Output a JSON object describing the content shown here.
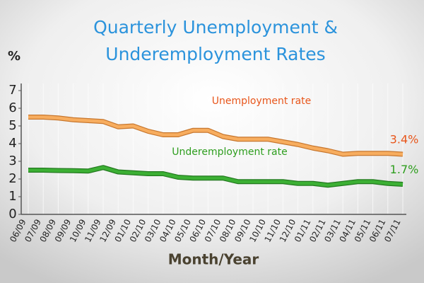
{
  "chart_data": {
    "type": "line",
    "title": [
      "Quarterly Unemployment &",
      "Underemployment Rates"
    ],
    "y_label": "%",
    "x_label": "Month/Year",
    "categories": [
      "06/09",
      "07/09",
      "08/09",
      "09/09",
      "10/09",
      "11/09",
      "12/09",
      "01/10",
      "02/10",
      "03/10",
      "04/10",
      "05/10",
      "06/10",
      "07/10",
      "08/10",
      "09/10",
      "10/10",
      "11/10",
      "12/10",
      "01/11",
      "02/11",
      "03/11",
      "04/11",
      "05/11",
      "06/11",
      "07/11"
    ],
    "series": [
      {
        "name": "Unemployment rate",
        "color": "#f7ad5f",
        "label_color": "#e8561b",
        "values": [
          5.5,
          5.5,
          5.45,
          5.35,
          5.3,
          5.25,
          4.95,
          5.0,
          4.7,
          4.5,
          4.5,
          4.75,
          4.75,
          4.4,
          4.25,
          4.25,
          4.25,
          4.1,
          3.95,
          3.75,
          3.6,
          3.4,
          3.45,
          3.45,
          3.45,
          3.4
        ],
        "value_labels": [
          null,
          null,
          null,
          null,
          null,
          null,
          null,
          null,
          null,
          null,
          null,
          null,
          null,
          null,
          null,
          null,
          null,
          null,
          null,
          null,
          null,
          null,
          null,
          null,
          null,
          "3.4%"
        ]
      },
      {
        "name": "Underemployment rate",
        "color": "#3cb034",
        "label_color": "#2e9e1e",
        "values": [
          2.5,
          2.5,
          2.48,
          2.47,
          2.45,
          2.65,
          2.4,
          2.35,
          2.3,
          2.3,
          2.1,
          2.05,
          2.05,
          2.05,
          1.85,
          1.85,
          1.85,
          1.85,
          1.75,
          1.75,
          1.65,
          1.75,
          1.85,
          1.85,
          1.75,
          1.7
        ],
        "value_labels": [
          null,
          null,
          null,
          null,
          null,
          null,
          null,
          null,
          null,
          null,
          null,
          null,
          null,
          null,
          null,
          null,
          null,
          null,
          null,
          null,
          null,
          null,
          null,
          null,
          null,
          "1.7%"
        ]
      }
    ],
    "ylim": [
      0,
      7.4
    ],
    "yticks": [
      0,
      1,
      2,
      3,
      4,
      5,
      6,
      7
    ]
  }
}
